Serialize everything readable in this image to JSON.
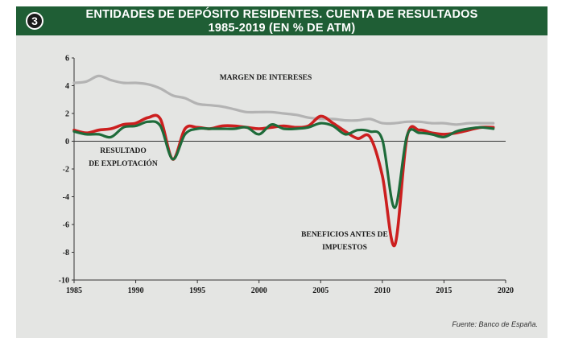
{
  "header": {
    "badge": "3",
    "title_line1": "ENTIDADES DE DEPÓSITO RESIDENTES. CUENTA DE RESULTADOS",
    "title_line2": "1985-2019 (EN % DE ATM)"
  },
  "source": "Fuente: Banco de España.",
  "colors": {
    "banner": "#1f5e35",
    "margen": "#b3b3b3",
    "resultado": "#1e6b3a",
    "beneficios": "#cc1f1f"
  },
  "chart_data": {
    "type": "line",
    "title": "ENTIDADES DE DEPÓSITO RESIDENTES. CUENTA DE RESULTADOS 1985-2019 (EN % DE ATM)",
    "xlabel": "",
    "ylabel": "",
    "xlim": [
      1985,
      2020
    ],
    "ylim": [
      -10,
      6
    ],
    "x_ticks": [
      "1985",
      "1990",
      "1995",
      "2000",
      "2005",
      "2010",
      "2015",
      "2020"
    ],
    "y_ticks": [
      "6",
      "4",
      "2",
      "0",
      "-2",
      "-4",
      "-6",
      "-8",
      "-10"
    ],
    "grid": false,
    "zero_line": true,
    "series": [
      {
        "name": "MARGEN DE INTERESES",
        "label_lines": [
          "MARGEN DE INTERESES"
        ],
        "x": [
          1985,
          1986,
          1987,
          1988,
          1989,
          1990,
          1991,
          1992,
          1993,
          1994,
          1995,
          1996,
          1997,
          1998,
          1999,
          2000,
          2001,
          2002,
          2003,
          2004,
          2005,
          2006,
          2007,
          2008,
          2009,
          2010,
          2011,
          2012,
          2013,
          2014,
          2015,
          2016,
          2017,
          2018,
          2019
        ],
        "values": [
          4.2,
          4.3,
          4.7,
          4.4,
          4.2,
          4.2,
          4.1,
          3.8,
          3.3,
          3.1,
          2.7,
          2.6,
          2.5,
          2.3,
          2.1,
          2.1,
          2.1,
          2.0,
          1.9,
          1.7,
          1.6,
          1.6,
          1.5,
          1.5,
          1.6,
          1.3,
          1.3,
          1.4,
          1.4,
          1.3,
          1.3,
          1.2,
          1.3,
          1.3,
          1.3
        ]
      },
      {
        "name": "RESULTADO DE EXPLOTACIÓN",
        "label_lines": [
          "RESULTADO",
          "DE EXPLOTACIÓN"
        ],
        "x": [
          1985,
          1986,
          1987,
          1988,
          1989,
          1990,
          1991,
          1992,
          1993,
          1994,
          1995,
          1996,
          1997,
          1998,
          1999,
          2000,
          2001,
          2002,
          2003,
          2004,
          2005,
          2006,
          2007,
          2008,
          2009,
          2010,
          2011,
          2012,
          2013,
          2014,
          2015,
          2016,
          2017,
          2018,
          2019
        ],
        "values": [
          0.7,
          0.5,
          0.5,
          0.3,
          1.0,
          1.1,
          1.4,
          1.1,
          -1.3,
          0.5,
          0.9,
          0.9,
          0.9,
          0.9,
          1.0,
          0.5,
          1.2,
          0.9,
          0.9,
          1.0,
          1.3,
          1.1,
          0.5,
          0.8,
          0.7,
          0.1,
          -4.8,
          0.4,
          0.6,
          0.5,
          0.3,
          0.7,
          0.9,
          1.0,
          0.9
        ]
      },
      {
        "name": "BENEFICIOS ANTES DE IMPUESTOS",
        "label_lines": [
          "BENEFICIOS ANTES DE",
          "IMPUESTOS"
        ],
        "x": [
          1985,
          1986,
          1987,
          1988,
          1989,
          1990,
          1991,
          1992,
          1993,
          1994,
          1995,
          1996,
          1997,
          1998,
          1999,
          2000,
          2001,
          2002,
          2003,
          2004,
          2005,
          2006,
          2007,
          2008,
          2009,
          2010,
          2011,
          2012,
          2013,
          2014,
          2015,
          2016,
          2017,
          2018,
          2019
        ],
        "values": [
          0.8,
          0.6,
          0.8,
          0.9,
          1.2,
          1.3,
          1.7,
          1.6,
          -1.3,
          0.9,
          1.0,
          0.9,
          1.1,
          1.1,
          1.0,
          0.9,
          1.0,
          1.1,
          1.0,
          1.1,
          1.8,
          1.3,
          0.7,
          0.2,
          0.3,
          -2.5,
          -7.5,
          0.3,
          0.8,
          0.6,
          0.5,
          0.6,
          0.8,
          1.0,
          1.0
        ]
      }
    ]
  }
}
